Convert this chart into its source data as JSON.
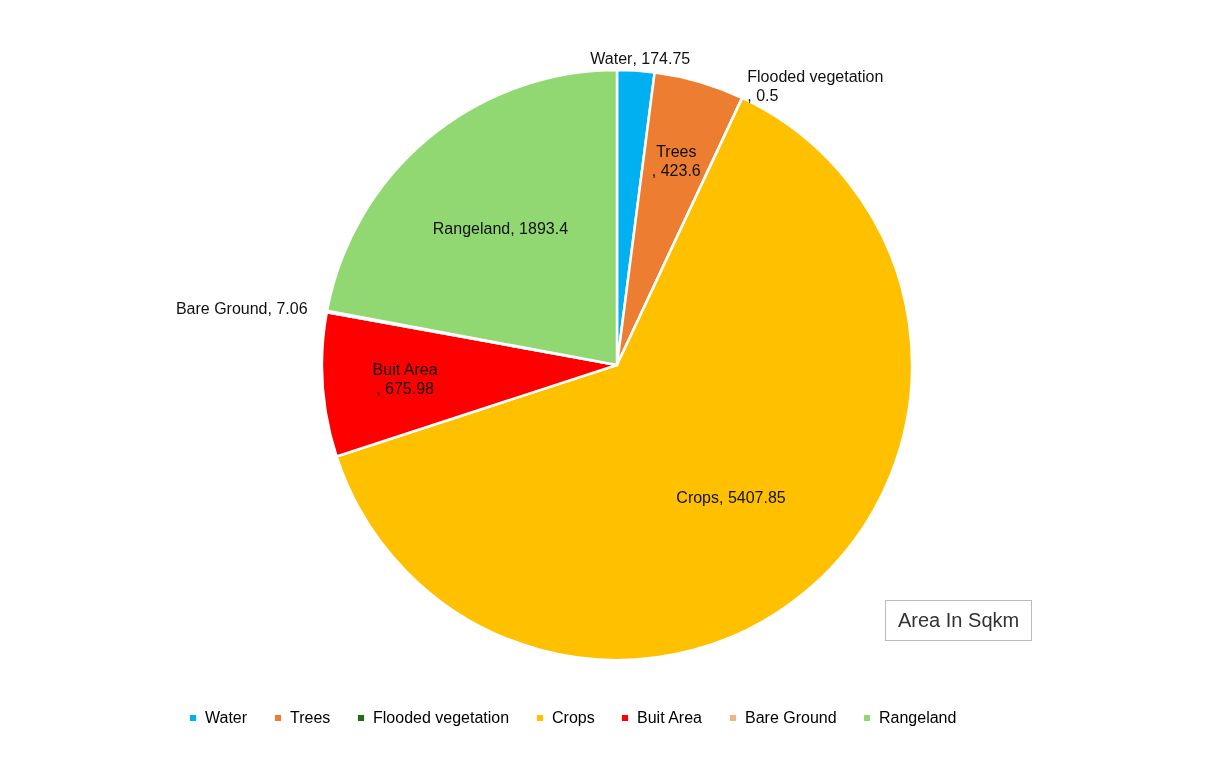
{
  "chart_data": {
    "type": "pie",
    "categories": [
      "Water",
      "Trees",
      "Flooded vegetation",
      "Crops",
      "Buit Area",
      "Bare Ground",
      "Rangeland"
    ],
    "values": [
      174.75,
      423.6,
      0.5,
      5407.85,
      675.98,
      7.06,
      1893.4
    ],
    "colors": [
      "#00b0f0",
      "#ed7d31",
      "#1e6b1e",
      "#ffc000",
      "#ff0000",
      "#f4b183",
      "#92d872"
    ],
    "value_labels": [
      ", 174.75",
      ", 423.6",
      ", 0.5",
      ", 5407.85",
      ", 675.98",
      ", 7.06",
      ", 1893.4"
    ],
    "legend": "bottom",
    "annotations": [
      "Area In Sqkm"
    ]
  }
}
